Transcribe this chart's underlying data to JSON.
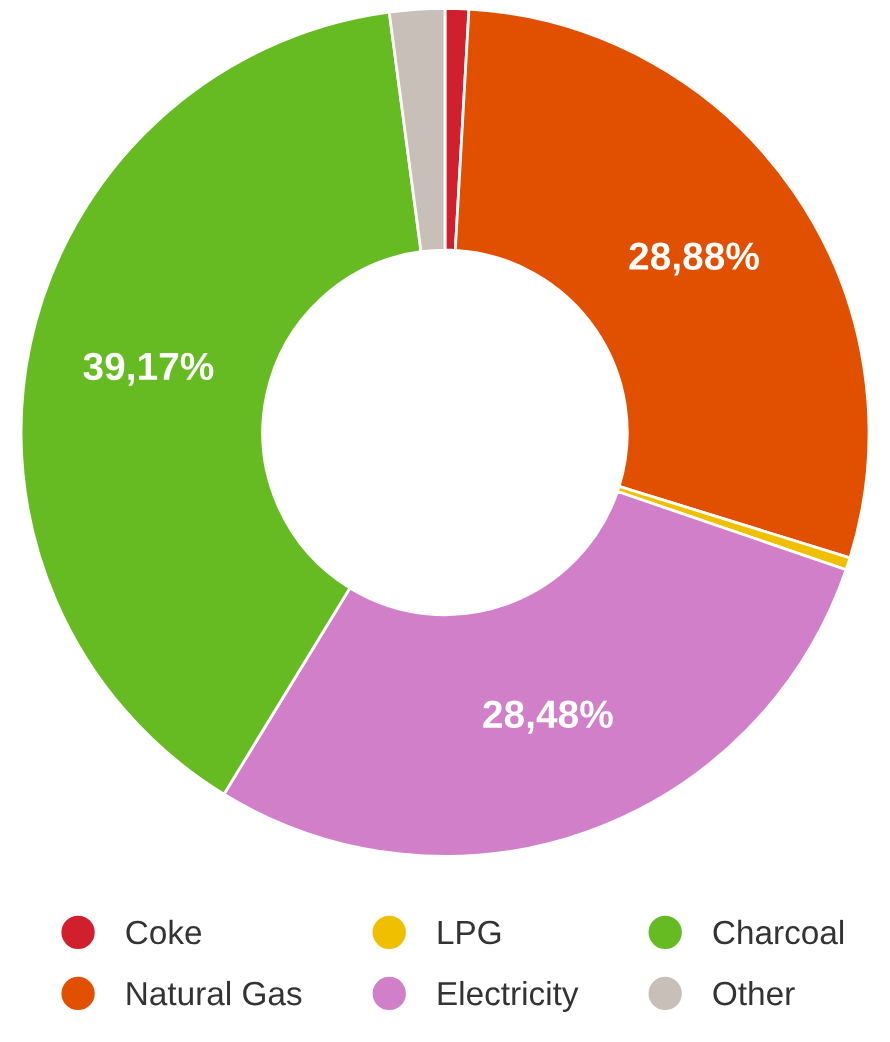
{
  "chart_data": {
    "type": "donut",
    "categories": [
      "Coke",
      "Natural Gas",
      "LPG",
      "Electricity",
      "Charcoal",
      "Other"
    ],
    "values": [
      0.9,
      28.88,
      0.47,
      28.48,
      39.17,
      2.1
    ],
    "colors": [
      "#d0202e",
      "#e05000",
      "#f0c000",
      "#d17fc8",
      "#66bb22",
      "#c8bfb8"
    ],
    "value_labels": [
      null,
      "28,88%",
      null,
      "28,48%",
      "39,17%",
      null
    ],
    "legend": "bottom"
  }
}
